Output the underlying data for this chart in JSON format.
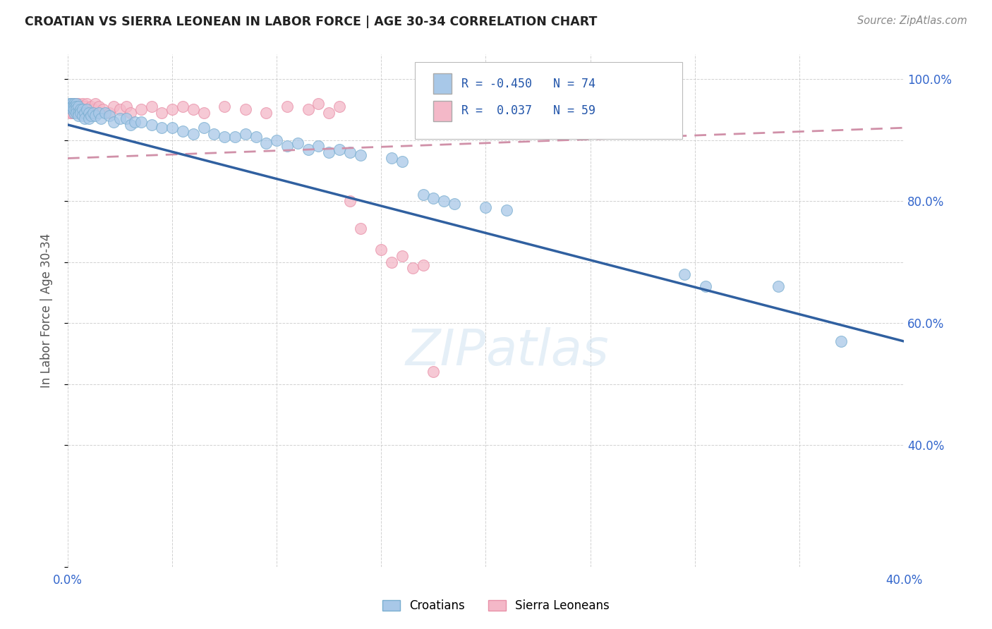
{
  "title": "CROATIAN VS SIERRA LEONEAN IN LABOR FORCE | AGE 30-34 CORRELATION CHART",
  "source": "Source: ZipAtlas.com",
  "ylabel": "In Labor Force | Age 30-34",
  "xlim": [
    0.0,
    0.4
  ],
  "ylim": [
    0.2,
    1.04
  ],
  "R_croatian": -0.45,
  "N_croatian": 74,
  "R_sierra": 0.037,
  "N_sierra": 59,
  "croatian_color": "#a8c8e8",
  "croatian_edge": "#7aaed0",
  "sierra_color": "#f4b8c8",
  "sierra_edge": "#e890a8",
  "trendline_croatian_color": "#3060a0",
  "trendline_sierra_color": "#d090a8",
  "watermark_color": "#cce0f0",
  "croatian_x": [
    0.001,
    0.001,
    0.001,
    0.002,
    0.002,
    0.002,
    0.002,
    0.003,
    0.003,
    0.003,
    0.003,
    0.003,
    0.004,
    0.004,
    0.004,
    0.004,
    0.005,
    0.005,
    0.005,
    0.006,
    0.006,
    0.007,
    0.007,
    0.008,
    0.008,
    0.009,
    0.01,
    0.01,
    0.011,
    0.012,
    0.013,
    0.015,
    0.016,
    0.018,
    0.02,
    0.022,
    0.025,
    0.028,
    0.03,
    0.032,
    0.035,
    0.04,
    0.045,
    0.05,
    0.055,
    0.06,
    0.065,
    0.07,
    0.075,
    0.08,
    0.085,
    0.09,
    0.095,
    0.1,
    0.105,
    0.11,
    0.115,
    0.12,
    0.125,
    0.13,
    0.135,
    0.14,
    0.155,
    0.16,
    0.17,
    0.175,
    0.18,
    0.185,
    0.2,
    0.21,
    0.295,
    0.305,
    0.34,
    0.37
  ],
  "croatian_y": [
    0.96,
    0.955,
    0.96,
    0.96,
    0.955,
    0.95,
    0.955,
    0.96,
    0.955,
    0.945,
    0.955,
    0.95,
    0.96,
    0.955,
    0.95,
    0.945,
    0.955,
    0.945,
    0.94,
    0.95,
    0.945,
    0.95,
    0.94,
    0.945,
    0.935,
    0.95,
    0.945,
    0.935,
    0.94,
    0.945,
    0.94,
    0.945,
    0.935,
    0.945,
    0.94,
    0.93,
    0.935,
    0.935,
    0.925,
    0.93,
    0.93,
    0.925,
    0.92,
    0.92,
    0.915,
    0.91,
    0.92,
    0.91,
    0.905,
    0.905,
    0.91,
    0.905,
    0.895,
    0.9,
    0.89,
    0.895,
    0.885,
    0.89,
    0.88,
    0.885,
    0.88,
    0.875,
    0.87,
    0.865,
    0.81,
    0.805,
    0.8,
    0.795,
    0.79,
    0.785,
    0.68,
    0.66,
    0.66,
    0.57
  ],
  "sierra_x": [
    0.001,
    0.001,
    0.001,
    0.002,
    0.002,
    0.002,
    0.002,
    0.003,
    0.003,
    0.003,
    0.003,
    0.004,
    0.004,
    0.004,
    0.005,
    0.005,
    0.005,
    0.006,
    0.006,
    0.007,
    0.007,
    0.008,
    0.008,
    0.009,
    0.009,
    0.01,
    0.011,
    0.012,
    0.013,
    0.015,
    0.017,
    0.02,
    0.022,
    0.025,
    0.028,
    0.03,
    0.035,
    0.04,
    0.045,
    0.05,
    0.055,
    0.06,
    0.065,
    0.075,
    0.085,
    0.095,
    0.105,
    0.115,
    0.12,
    0.125,
    0.13,
    0.135,
    0.14,
    0.15,
    0.155,
    0.16,
    0.165,
    0.17,
    0.175
  ],
  "sierra_y": [
    0.95,
    0.945,
    0.955,
    0.95,
    0.945,
    0.955,
    0.96,
    0.95,
    0.96,
    0.955,
    0.945,
    0.955,
    0.95,
    0.96,
    0.955,
    0.945,
    0.96,
    0.95,
    0.955,
    0.96,
    0.945,
    0.955,
    0.95,
    0.96,
    0.945,
    0.95,
    0.955,
    0.95,
    0.96,
    0.955,
    0.95,
    0.945,
    0.955,
    0.95,
    0.955,
    0.945,
    0.95,
    0.955,
    0.945,
    0.95,
    0.955,
    0.95,
    0.945,
    0.955,
    0.95,
    0.945,
    0.955,
    0.95,
    0.96,
    0.945,
    0.955,
    0.8,
    0.755,
    0.72,
    0.7,
    0.71,
    0.69,
    0.695,
    0.52
  ],
  "trendline_croatian_x0": 0.0,
  "trendline_croatian_y0": 0.925,
  "trendline_croatian_x1": 0.4,
  "trendline_croatian_y1": 0.57,
  "trendline_sierra_x0": 0.0,
  "trendline_sierra_y0": 0.87,
  "trendline_sierra_x1": 0.4,
  "trendline_sierra_y1": 0.92
}
